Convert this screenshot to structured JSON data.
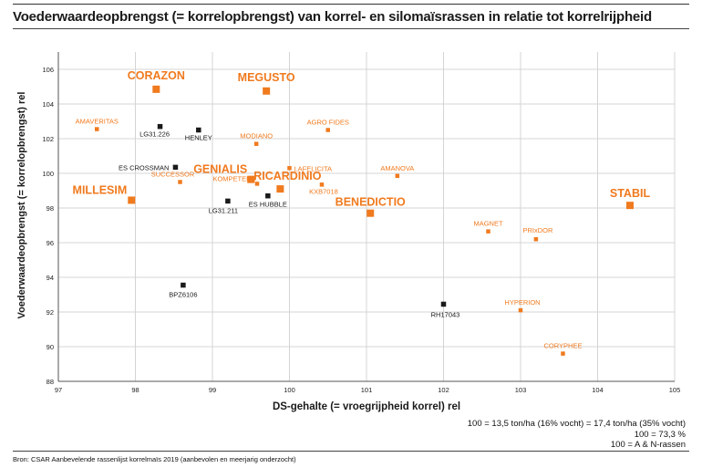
{
  "title": "Voederwaardeopbrengst (= korrelopbrengst) van korrel- en silomaïsrassen in relatie tot korrelrijpheid",
  "notes": [
    "100 = 13,5 ton/ha (16% vocht) = 17,4 ton/ha (35% vocht)",
    "100 = 73,3 %",
    "100 = A & N-rassen"
  ],
  "source": "Bron: CSAR Aanbevelende rassenlijst korrelmaïs 2019 (aanbevolen en meerjarig onderzocht)",
  "colors": {
    "orange": "#f07a1e",
    "black": "#1a1a1a",
    "grid": "#d4d4d4",
    "axis": "#555555"
  },
  "chart_data": {
    "type": "scatter",
    "xlabel": "DS-gehalte (= vroegrijpheid korrel) rel",
    "ylabel": "Voederwaardeopbrengst (= korrelopbrengst) rel",
    "xlim": [
      97,
      105
    ],
    "ylim": [
      88,
      107
    ],
    "xticks": [
      97,
      98,
      99,
      100,
      101,
      102,
      103,
      104,
      105
    ],
    "yticks": [
      88,
      90,
      92,
      94,
      96,
      98,
      100,
      102,
      104,
      106
    ],
    "grid": true,
    "points": [
      {
        "label": "CORAZON",
        "x": 98.27,
        "y": 104.85,
        "color": "orange",
        "size": "large"
      },
      {
        "label": "MEGUSTO",
        "x": 99.7,
        "y": 104.75,
        "color": "orange",
        "size": "large"
      },
      {
        "label": "AMAVERITAS",
        "x": 97.5,
        "y": 102.55,
        "color": "orange",
        "size": "small"
      },
      {
        "label": "LG31.226",
        "x": 98.32,
        "y": 102.7,
        "color": "black",
        "size": "small"
      },
      {
        "label": "HENLEY",
        "x": 98.82,
        "y": 102.5,
        "color": "black",
        "size": "small"
      },
      {
        "label": "AGRO FIDES",
        "x": 100.5,
        "y": 102.5,
        "color": "orange",
        "size": "small"
      },
      {
        "label": "MODIANO",
        "x": 99.57,
        "y": 101.7,
        "color": "orange",
        "size": "small"
      },
      {
        "label": "ES CROSSMAN",
        "x": 98.52,
        "y": 100.35,
        "color": "black",
        "size": "small"
      },
      {
        "label": "LAFELICITA",
        "x": 100.0,
        "y": 100.3,
        "color": "orange",
        "size": "small"
      },
      {
        "label": "AMANOVA",
        "x": 101.4,
        "y": 99.85,
        "color": "orange",
        "size": "small"
      },
      {
        "label": "GENIALIS",
        "x": 99.5,
        "y": 99.65,
        "color": "orange",
        "size": "large"
      },
      {
        "label": "SUCCESSOR",
        "x": 98.58,
        "y": 99.5,
        "color": "orange",
        "size": "small"
      },
      {
        "label": "RICARDINIO",
        "x": 99.88,
        "y": 99.1,
        "color": "orange",
        "size": "large"
      },
      {
        "label": "KOMPETENS",
        "x": 99.58,
        "y": 99.4,
        "color": "orange",
        "size": "small"
      },
      {
        "label": "KXB7018",
        "x": 100.42,
        "y": 99.35,
        "color": "orange",
        "size": "small"
      },
      {
        "label": "MILLESIM",
        "x": 97.95,
        "y": 98.45,
        "color": "orange",
        "size": "large"
      },
      {
        "label": "LG31.211",
        "x": 99.2,
        "y": 98.4,
        "color": "black",
        "size": "small"
      },
      {
        "label": "ES HUBBLE",
        "x": 99.72,
        "y": 98.7,
        "color": "black",
        "size": "small"
      },
      {
        "label": "BENEDICTIO",
        "x": 101.05,
        "y": 97.7,
        "color": "orange",
        "size": "large"
      },
      {
        "label": "STABIL",
        "x": 104.42,
        "y": 98.15,
        "color": "orange",
        "size": "large"
      },
      {
        "label": "MAGNET",
        "x": 102.58,
        "y": 96.65,
        "color": "orange",
        "size": "small"
      },
      {
        "label": "PRIxDOR",
        "x": 103.2,
        "y": 96.2,
        "color": "orange",
        "size": "small"
      },
      {
        "label": "BPZ6106",
        "x": 98.62,
        "y": 93.55,
        "color": "black",
        "size": "small"
      },
      {
        "label": "RH17043",
        "x": 102.0,
        "y": 92.45,
        "color": "black",
        "size": "small"
      },
      {
        "label": "HYPERION",
        "x": 103.0,
        "y": 92.1,
        "color": "orange",
        "size": "small"
      },
      {
        "label": "CORYPHEE",
        "x": 103.55,
        "y": 89.6,
        "color": "orange",
        "size": "small"
      }
    ]
  }
}
